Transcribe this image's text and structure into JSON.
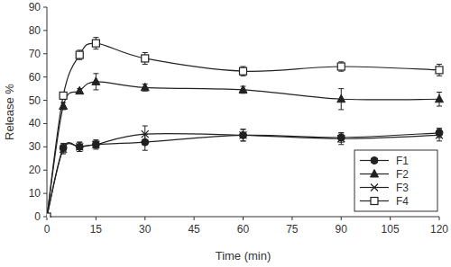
{
  "chart_data": {
    "type": "line",
    "x_label": "Time (min)",
    "y_label": "Release %",
    "x": [
      0,
      5,
      10,
      15,
      30,
      60,
      90,
      120
    ],
    "xlim": [
      0,
      120
    ],
    "xticks": [
      0,
      15,
      30,
      45,
      60,
      75,
      90,
      105,
      120
    ],
    "ylim": [
      0,
      90
    ],
    "yticks": [
      0,
      10,
      20,
      30,
      40,
      50,
      60,
      70,
      80,
      90
    ],
    "grid": false,
    "legend": "lower right",
    "line_style": "smooth",
    "series": [
      {
        "name": "F1",
        "color": "#222222",
        "marker": "circle",
        "values": [
          0,
          29.5,
          30,
          31,
          32,
          35,
          34,
          36
        ],
        "errors": [
          0,
          2,
          2,
          1.5,
          3.5,
          2.5,
          2,
          2
        ]
      },
      {
        "name": "F2",
        "color": "#222222",
        "marker": "triangle",
        "values": [
          0,
          47.5,
          54,
          58,
          55.5,
          54.5,
          50.5,
          50.5
        ],
        "errors": [
          0,
          1.5,
          1,
          3.5,
          1.5,
          1.5,
          4.5,
          3
        ]
      },
      {
        "name": "F3",
        "color": "#222222",
        "marker": "x",
        "values": [
          0,
          29,
          30,
          31,
          35.5,
          35,
          33.5,
          35
        ],
        "errors": [
          0,
          2,
          2,
          2,
          3.5,
          2.5,
          2.5,
          2.5
        ]
      },
      {
        "name": "F4",
        "color": "#222222",
        "marker": "open-square",
        "values": [
          0,
          52,
          69.5,
          74.5,
          68,
          62.5,
          64.5,
          63
        ],
        "errors": [
          0,
          1.5,
          2,
          2.5,
          2.5,
          2,
          2,
          2.5
        ]
      }
    ]
  }
}
